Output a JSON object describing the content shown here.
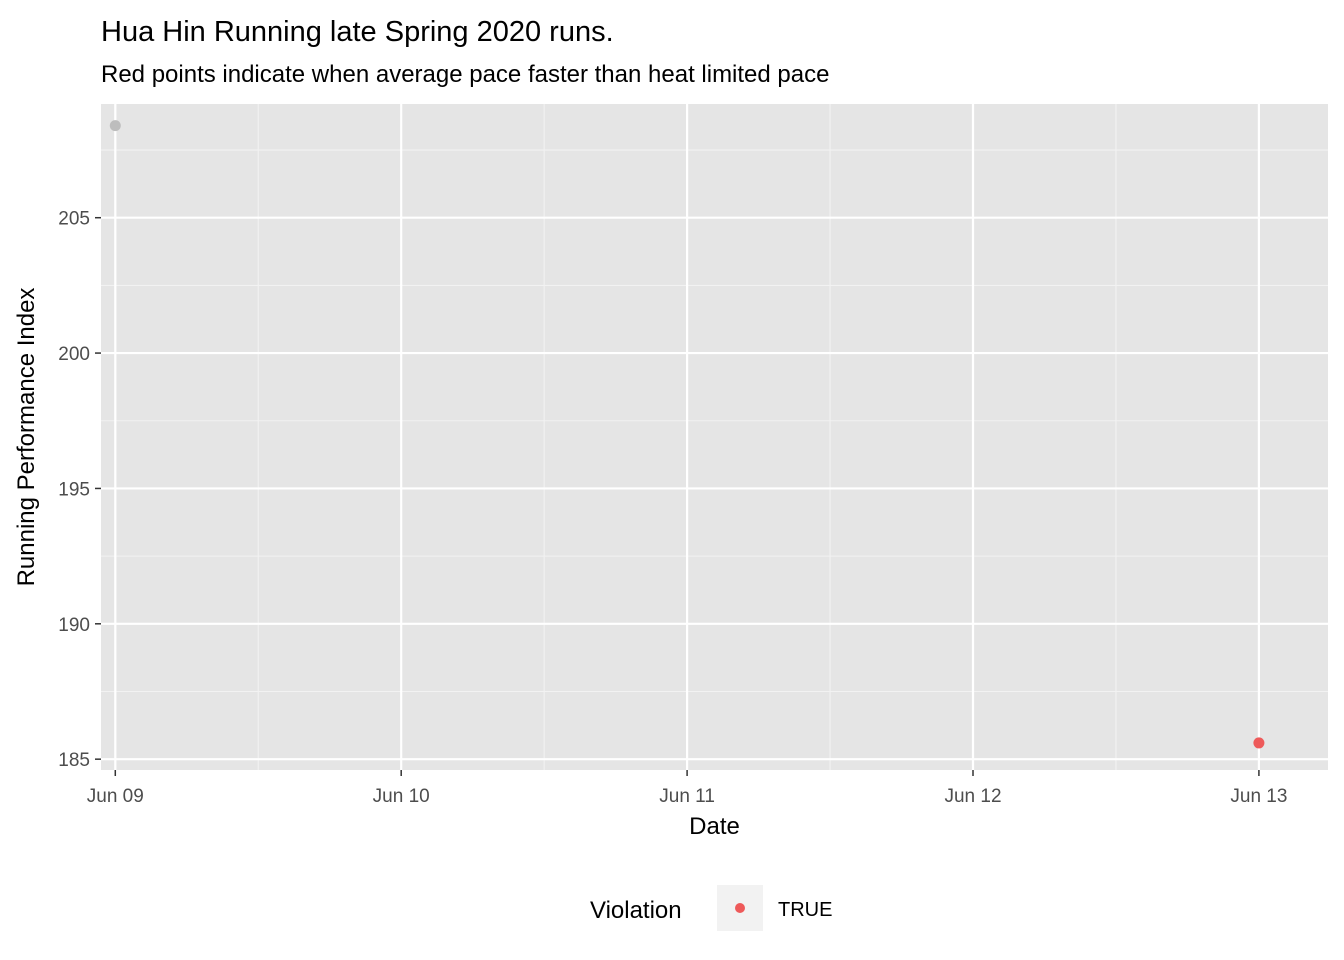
{
  "chart_data": {
    "type": "scatter",
    "title": "Hua Hin Running late Spring 2020 runs.",
    "subtitle": "Red points indicate when average pace faster than heat limited pace",
    "xlabel": "Date",
    "ylabel": "Running Performance Index",
    "x_ticks": [
      "Jun 09",
      "Jun 10",
      "Jun 11",
      "Jun 12",
      "Jun 13"
    ],
    "y_ticks": [
      185,
      190,
      195,
      200,
      205
    ],
    "xlim": [
      "2020-06-08 22:48",
      "2020-06-13 05:48"
    ],
    "ylim": [
      184.6,
      209.2
    ],
    "grid": true,
    "legend": {
      "title": "Violation",
      "placement": "bottom",
      "entries": [
        {
          "label": "TRUE",
          "color": "#ee5a5a"
        }
      ]
    },
    "series": [
      {
        "name": "TRUE",
        "color": "#ee5a5a",
        "points": [
          {
            "x": "2020-06-13",
            "y": 185.6
          }
        ]
      },
      {
        "name": "",
        "color": "#bdbdbd",
        "points": [
          {
            "x": "2020-06-09",
            "y": 208.4
          }
        ]
      }
    ]
  }
}
